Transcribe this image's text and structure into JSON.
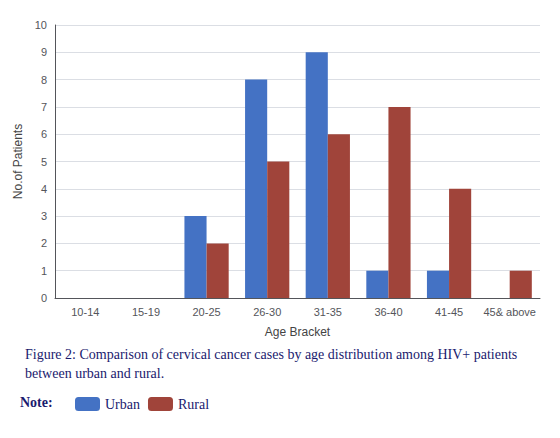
{
  "chart_data": {
    "type": "bar",
    "title": "Figure 2: Comparison of cervical cancer cases by age distribution among HIV+ patients between urban and rural.",
    "annotations": [
      "Note:"
    ],
    "categories": [
      "10-14",
      "15-19",
      "20-25",
      "26-30",
      "31-35",
      "36-40",
      "41-45",
      "45& above"
    ],
    "series": [
      {
        "name": "Urban",
        "color": "#4472C4",
        "values": [
          0,
          0,
          3,
          8,
          9,
          1,
          1,
          0
        ]
      },
      {
        "name": "Rural",
        "color": "#A0443A",
        "values": [
          0,
          0,
          2,
          5,
          6,
          7,
          4,
          1
        ]
      }
    ],
    "xlabel": "Age Bracket",
    "ylabel": "No.of Patients",
    "ylim": [
      0,
      10
    ],
    "yticks": [
      0,
      1,
      2,
      3,
      4,
      5,
      6,
      7,
      8,
      9,
      10
    ],
    "grid": true,
    "legend": "bottom"
  }
}
